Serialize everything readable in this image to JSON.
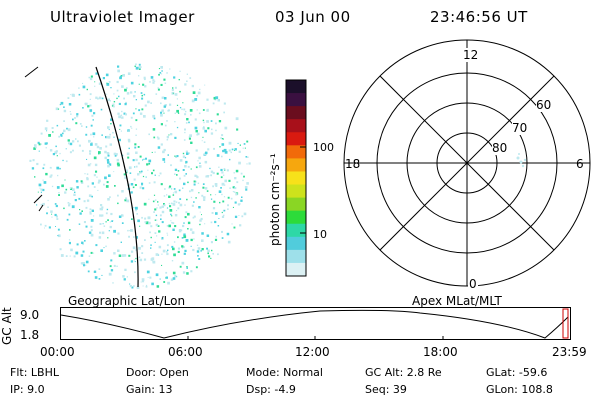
{
  "header": {
    "instrument": "Ultraviolet Imager",
    "date": "03 Jun 00",
    "time": "23:46:56 UT"
  },
  "colorbar": {
    "unit_label": "photon cm⁻²s⁻¹",
    "ticks": [
      "100",
      "10"
    ],
    "colors": [
      "#1b0f2a",
      "#3a1040",
      "#6a0d1e",
      "#a8101a",
      "#d91a10",
      "#f16a0a",
      "#f6a70e",
      "#f7e11a",
      "#cde21c",
      "#8ad624",
      "#2ddb3a",
      "#2ed8a6",
      "#51ccdc",
      "#9ee0ea",
      "#dcf1f4"
    ]
  },
  "polar": {
    "mlt_labels": {
      "top": "12",
      "left": "18",
      "right": "6",
      "bottom": "0"
    },
    "lat_labels": [
      "60",
      "70",
      "80"
    ]
  },
  "panels": {
    "geo_label": "Geographic Lat/Lon",
    "apex_label": "Apex MLat/MLT"
  },
  "altitude_plot": {
    "ylabel": "GC Alt",
    "yticks": [
      "9.0",
      "1.8"
    ],
    "xticks": [
      "00:00",
      "06:00",
      "12:00",
      "18:00",
      "23:59"
    ]
  },
  "info": {
    "filter": "Flt: LBHL",
    "ip": "IP:  9.0",
    "door": "Door: Open",
    "gain": "Gain: 13",
    "mode": "Mode: Normal",
    "dsp": "Dsp:   -4.9",
    "gc_alt": "GC Alt: 2.8 Re",
    "seq": "Seq: 39",
    "glat": "GLat:  -59.6",
    "glon": "GLon: 108.8"
  },
  "colors": {
    "foreground": "#000000",
    "background": "#ffffff",
    "dot_cyan": "#4ed3e0",
    "dot_green": "#2fdc96",
    "dot_light": "#bfe9ef",
    "marker_red": "#cc0000"
  }
}
